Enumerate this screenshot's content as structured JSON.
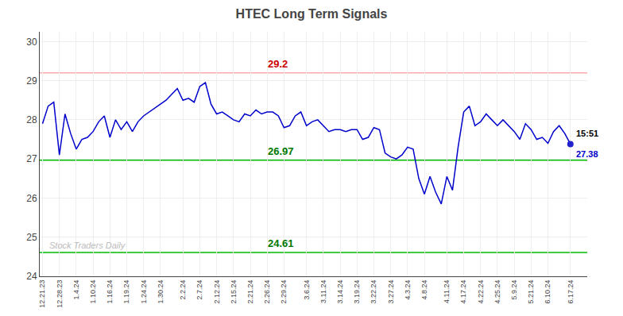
{
  "chart_data": {
    "type": "line",
    "title": "HTEC Long Term Signals",
    "categories": [
      "12.21.23",
      null,
      null,
      "12.28.23",
      null,
      null,
      "1.4.24",
      null,
      null,
      "1.10.24",
      null,
      null,
      "1.16.24",
      null,
      null,
      "1.19.24",
      null,
      null,
      "1.24.24",
      null,
      null,
      "1.30.24",
      null,
      null,
      null,
      "2.2.24",
      null,
      null,
      "2.7.24",
      null,
      null,
      "2.12.24",
      null,
      null,
      "2.15.24",
      null,
      null,
      "2.21.24",
      null,
      null,
      "2.26.24",
      null,
      null,
      "2.29.24",
      null,
      null,
      null,
      "3.6.24",
      null,
      null,
      "3.11.24",
      null,
      null,
      "3.14.24",
      null,
      null,
      "3.19.24",
      null,
      null,
      "3.22.24",
      null,
      null,
      "3.27.24",
      null,
      null,
      "4.3.24",
      null,
      null,
      "4.8.24",
      null,
      null,
      null,
      "4.11.24",
      null,
      null,
      "4.17.24",
      null,
      null,
      "4.22.24",
      null,
      null,
      "4.25.24",
      null,
      null,
      "5.9.24",
      null,
      null,
      "5.21.24",
      null,
      null,
      "6.10.24",
      null,
      null,
      null,
      "6.17.24"
    ],
    "values": [
      27.9,
      28.35,
      28.45,
      27.1,
      28.15,
      27.65,
      27.25,
      27.5,
      27.55,
      27.7,
      27.95,
      28.1,
      27.55,
      28.0,
      27.75,
      27.95,
      27.7,
      27.95,
      28.1,
      28.2,
      28.3,
      28.4,
      28.5,
      28.65,
      28.8,
      28.5,
      28.55,
      28.45,
      28.85,
      28.95,
      28.4,
      28.15,
      28.2,
      28.1,
      28.0,
      27.95,
      28.15,
      28.1,
      28.25,
      28.15,
      28.2,
      28.2,
      28.1,
      27.8,
      27.85,
      28.1,
      28.2,
      27.85,
      27.95,
      28.0,
      27.85,
      27.7,
      27.75,
      27.75,
      27.7,
      27.75,
      27.75,
      27.5,
      27.55,
      27.8,
      27.75,
      27.15,
      27.05,
      27.0,
      27.1,
      27.3,
      27.25,
      26.5,
      26.1,
      26.55,
      26.15,
      25.85,
      26.55,
      26.2,
      27.3,
      28.2,
      28.35,
      27.85,
      27.95,
      28.15,
      28.0,
      27.85,
      28.0,
      27.85,
      27.7,
      27.5,
      27.9,
      27.75,
      27.5,
      27.55,
      27.4,
      27.7,
      27.85,
      27.65,
      27.38
    ],
    "color": "#0000cc",
    "ylim": [
      24.0,
      30.25
    ],
    "yticks": [
      24,
      25,
      26,
      27,
      28,
      29,
      30
    ],
    "grid": true,
    "reference_lines": [
      {
        "y": 29.2,
        "label": "29.2",
        "color": "#ffaaaa",
        "label_color": "#cc0000"
      },
      {
        "y": 26.97,
        "label": "26.97",
        "color": "#00bb00",
        "label_color": "#007700"
      },
      {
        "y": 24.61,
        "label": "24.61",
        "color": "#00bb00",
        "label_color": "#007700"
      }
    ],
    "last_point": {
      "color": "#2222cc",
      "time_label": "15:51",
      "time_color": "#000000",
      "value_label": "27.38",
      "value_color": "#0000cc"
    },
    "watermark": {
      "text": "Stock Traders Daily",
      "color": "#bbbbbb"
    }
  }
}
